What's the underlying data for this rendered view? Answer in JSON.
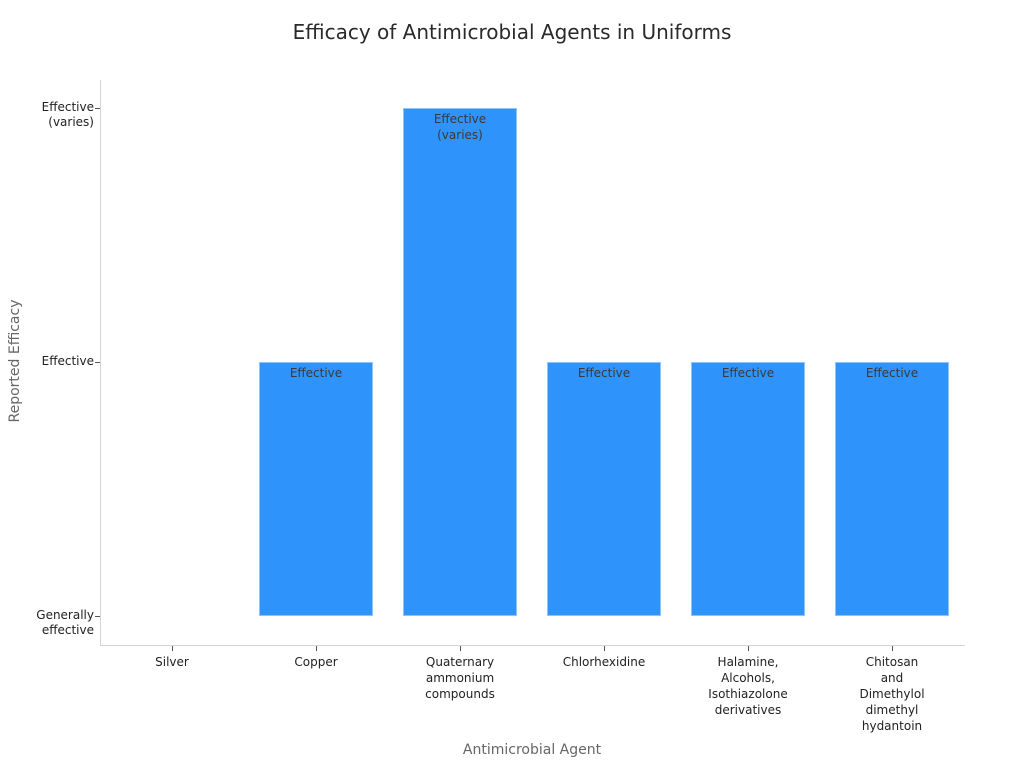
{
  "chart_data": {
    "type": "bar",
    "title": "Efficacy of Antimicrobial Agents in Uniforms",
    "xlabel": "Antimicrobial Agent",
    "ylabel": "Reported Efficacy",
    "categories": [
      "Silver",
      "Copper",
      "Quaternary\nammonium\ncompounds",
      "Chlorhexidine",
      "Halamine,\nAlcohols,\nIsothiazolone\nderivatives",
      "Chitosan\nand\nDimethylol\ndimethyl\nhydantoin"
    ],
    "values": [
      0,
      1,
      2,
      1,
      1,
      1
    ],
    "value_labels": [
      "Generally effective",
      "Effective",
      "Effective (varies)",
      "Effective",
      "Effective",
      "Effective"
    ],
    "bar_text": [
      "",
      "Effective",
      "Effective\n(varies)",
      "Effective",
      "Effective",
      "Effective"
    ],
    "y_ticks": [
      {
        "value": 0,
        "label": "Generally\neffective"
      },
      {
        "value": 1,
        "label": "Effective"
      },
      {
        "value": 2,
        "label": "Effective\n(varies)"
      }
    ],
    "ylim": [
      0,
      2
    ],
    "grid": false,
    "legend": null,
    "bar_color": "#2e93fa"
  }
}
